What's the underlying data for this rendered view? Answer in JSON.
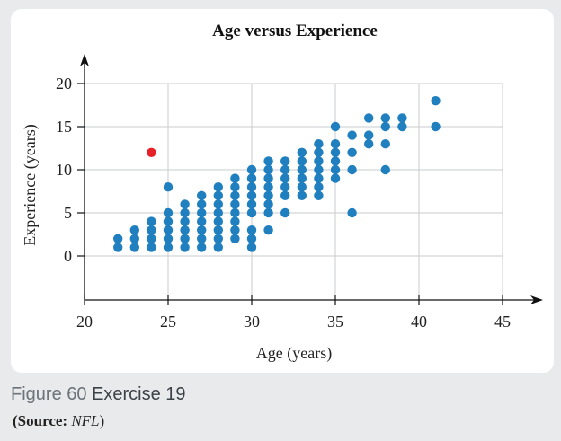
{
  "caption": {
    "figure_label": "Figure 60",
    "exercise": "Exercise 19"
  },
  "source": {
    "open": "(",
    "label": "Source:",
    "name": "NFL",
    "close": ")"
  },
  "colors": {
    "point": "#1f7fbf",
    "highlight": "#e8202a",
    "panel": "#ffffff",
    "background": "#e9eaeb"
  },
  "chart_data": {
    "type": "scatter",
    "title": "Age versus Experience",
    "xlabel": "Age (years)",
    "ylabel": "Experience (years)",
    "xlim": [
      20,
      45
    ],
    "ylim": [
      0,
      20
    ],
    "x_ticks": [
      20,
      25,
      30,
      35,
      40,
      45
    ],
    "y_ticks": [
      0,
      5,
      10,
      15,
      20
    ],
    "grid": true,
    "series": [
      {
        "color": "#1f7fbf",
        "points": [
          [
            22,
            1
          ],
          [
            22,
            2
          ],
          [
            23,
            1
          ],
          [
            23,
            2
          ],
          [
            23,
            3
          ],
          [
            24,
            1
          ],
          [
            24,
            2
          ],
          [
            24,
            3
          ],
          [
            24,
            4
          ],
          [
            25,
            1
          ],
          [
            25,
            2
          ],
          [
            25,
            3
          ],
          [
            25,
            4
          ],
          [
            25,
            5
          ],
          [
            25,
            8
          ],
          [
            26,
            1
          ],
          [
            26,
            2
          ],
          [
            26,
            3
          ],
          [
            26,
            4
          ],
          [
            26,
            5
          ],
          [
            26,
            6
          ],
          [
            27,
            1
          ],
          [
            27,
            2
          ],
          [
            27,
            3
          ],
          [
            27,
            4
          ],
          [
            27,
            5
          ],
          [
            27,
            6
          ],
          [
            27,
            7
          ],
          [
            28,
            1
          ],
          [
            28,
            2
          ],
          [
            28,
            3
          ],
          [
            28,
            4
          ],
          [
            28,
            5
          ],
          [
            28,
            6
          ],
          [
            28,
            7
          ],
          [
            28,
            8
          ],
          [
            29,
            2
          ],
          [
            29,
            3
          ],
          [
            29,
            4
          ],
          [
            29,
            5
          ],
          [
            29,
            6
          ],
          [
            29,
            7
          ],
          [
            29,
            8
          ],
          [
            29,
            9
          ],
          [
            30,
            1
          ],
          [
            30,
            2
          ],
          [
            30,
            3
          ],
          [
            30,
            5
          ],
          [
            30,
            6
          ],
          [
            30,
            7
          ],
          [
            30,
            8
          ],
          [
            30,
            9
          ],
          [
            30,
            10
          ],
          [
            31,
            3
          ],
          [
            31,
            5
          ],
          [
            31,
            6
          ],
          [
            31,
            7
          ],
          [
            31,
            8
          ],
          [
            31,
            9
          ],
          [
            31,
            10
          ],
          [
            31,
            11
          ],
          [
            32,
            5
          ],
          [
            32,
            7
          ],
          [
            32,
            8
          ],
          [
            32,
            9
          ],
          [
            32,
            10
          ],
          [
            32,
            11
          ],
          [
            33,
            7
          ],
          [
            33,
            8
          ],
          [
            33,
            9
          ],
          [
            33,
            10
          ],
          [
            33,
            11
          ],
          [
            33,
            12
          ],
          [
            34,
            7
          ],
          [
            34,
            8
          ],
          [
            34,
            9
          ],
          [
            34,
            10
          ],
          [
            34,
            11
          ],
          [
            34,
            12
          ],
          [
            34,
            13
          ],
          [
            35,
            9
          ],
          [
            35,
            10
          ],
          [
            35,
            11
          ],
          [
            35,
            12
          ],
          [
            35,
            13
          ],
          [
            35,
            15
          ],
          [
            36,
            5
          ],
          [
            36,
            10
          ],
          [
            36,
            12
          ],
          [
            36,
            14
          ],
          [
            37,
            13
          ],
          [
            37,
            14
          ],
          [
            37,
            16
          ],
          [
            38,
            10
          ],
          [
            38,
            13
          ],
          [
            38,
            15
          ],
          [
            38,
            16
          ],
          [
            39,
            15
          ],
          [
            39,
            16
          ],
          [
            41,
            15
          ],
          [
            41,
            18
          ]
        ]
      },
      {
        "color": "#e8202a",
        "points": [
          [
            24,
            12
          ]
        ]
      }
    ]
  }
}
